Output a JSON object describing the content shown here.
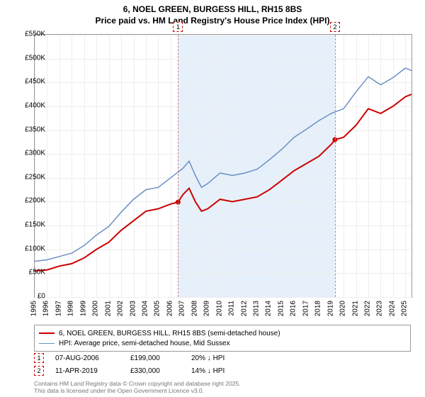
{
  "title_line1": "6, NOEL GREEN, BURGESS HILL, RH15 8BS",
  "title_line2": "Price paid vs. HM Land Registry's House Price Index (HPI)",
  "chart": {
    "type": "line",
    "background_color": "#ffffff",
    "grid_color": "#eeeeee",
    "border_color": "#999999",
    "shaded_band_color": "#e6f0fa",
    "x_years": [
      1995,
      1996,
      1997,
      1998,
      1999,
      2000,
      2001,
      2002,
      2003,
      2004,
      2005,
      2006,
      2007,
      2008,
      2009,
      2010,
      2011,
      2012,
      2013,
      2014,
      2015,
      2016,
      2017,
      2018,
      2019,
      2020,
      2021,
      2022,
      2023,
      2024,
      2025
    ],
    "x_min": 1995,
    "x_max": 2025.5,
    "ylim": [
      0,
      550
    ],
    "y_ticks": [
      0,
      50,
      100,
      150,
      200,
      250,
      300,
      350,
      400,
      450,
      500,
      550
    ],
    "y_tick_labels": [
      "£0",
      "£50K",
      "£100K",
      "£150K",
      "£200K",
      "£250K",
      "£300K",
      "£350K",
      "£400K",
      "£450K",
      "£500K",
      "£550K"
    ],
    "shaded_band": [
      2006.6,
      2019.3
    ],
    "series": [
      {
        "name": "price_paid",
        "label": "6, NOEL GREEN, BURGESS HILL, RH15 8BS (semi-detached house)",
        "color": "#cc0000",
        "line_width": 2,
        "years": [
          1995,
          1996,
          1997,
          1998,
          1999,
          2000,
          2001,
          2002,
          2003,
          2004,
          2005,
          2006,
          2006.6,
          2007,
          2007.5,
          2008,
          2008.5,
          2009,
          2010,
          2011,
          2012,
          2013,
          2014,
          2015,
          2016,
          2017,
          2018,
          2019,
          2019.3,
          2020,
          2021,
          2022,
          2023,
          2024,
          2025,
          2025.5
        ],
        "values": [
          55,
          57,
          65,
          70,
          82,
          100,
          115,
          140,
          160,
          180,
          185,
          195,
          199,
          215,
          228,
          200,
          180,
          185,
          205,
          200,
          205,
          210,
          225,
          245,
          265,
          280,
          295,
          320,
          330,
          335,
          360,
          395,
          385,
          400,
          420,
          425
        ]
      },
      {
        "name": "hpi",
        "label": "HPI: Average price, semi-detached house, Mid Sussex",
        "color": "#6b90c4",
        "line_width": 1.5,
        "years": [
          1995,
          1996,
          1997,
          1998,
          1999,
          2000,
          2001,
          2002,
          2003,
          2004,
          2005,
          2006,
          2007,
          2007.5,
          2008,
          2008.5,
          2009,
          2010,
          2011,
          2012,
          2013,
          2014,
          2015,
          2016,
          2017,
          2018,
          2019,
          2020,
          2021,
          2022,
          2023,
          2024,
          2025,
          2025.5
        ],
        "values": [
          75,
          78,
          85,
          92,
          108,
          130,
          148,
          178,
          205,
          225,
          230,
          250,
          270,
          285,
          255,
          230,
          238,
          260,
          255,
          260,
          268,
          288,
          310,
          335,
          352,
          370,
          385,
          395,
          430,
          462,
          445,
          460,
          480,
          475
        ]
      }
    ],
    "sale_markers": [
      {
        "n": "1",
        "year": 2006.6,
        "value": 199
      },
      {
        "n": "2",
        "year": 2019.3,
        "value": 330
      }
    ]
  },
  "legend": {
    "items": [
      {
        "color": "#cc0000",
        "width": 2,
        "label": "6, NOEL GREEN, BURGESS HILL, RH15 8BS (semi-detached house)"
      },
      {
        "color": "#6b90c4",
        "width": 1.5,
        "label": "HPI: Average price, semi-detached house, Mid Sussex"
      }
    ]
  },
  "sales": [
    {
      "n": "1",
      "date": "07-AUG-2006",
      "price": "£199,000",
      "delta": "20% ↓ HPI"
    },
    {
      "n": "2",
      "date": "11-APR-2019",
      "price": "£330,000",
      "delta": "14% ↓ HPI"
    }
  ],
  "footer_line1": "Contains HM Land Registry data © Crown copyright and database right 2025.",
  "footer_line2": "This data is licensed under the Open Government Licence v3.0."
}
